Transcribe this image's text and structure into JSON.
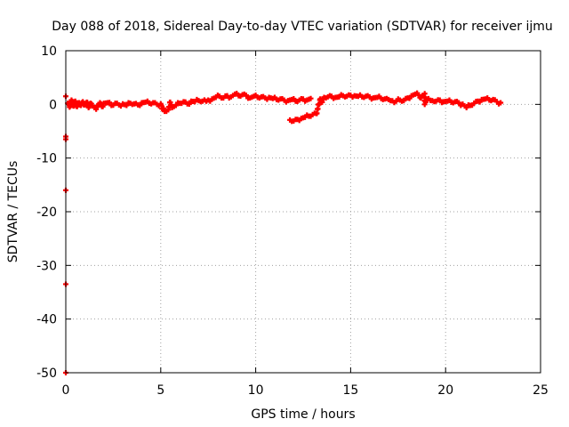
{
  "chart_data": {
    "type": "scatter",
    "title": "Day 088 of 2018, Sidereal Day-to-day VTEC variation (SDTVAR) for receiver ijmu",
    "xlabel": "GPS time / hours",
    "ylabel": "SDTVAR / TECUs",
    "xlim": [
      0,
      25
    ],
    "ylim": [
      -50,
      10
    ],
    "xticks": [
      0,
      5,
      10,
      15,
      20,
      25
    ],
    "yticks": [
      -50,
      -40,
      -30,
      -20,
      -10,
      0,
      10
    ],
    "grid": true,
    "series": [
      {
        "color": "#ff0000",
        "marker": "plus",
        "points": [
          [
            0.0,
            1.5
          ],
          [
            0.0,
            -6.0
          ],
          [
            0.0,
            -6.5
          ],
          [
            0.0,
            -16.0
          ],
          [
            0.0,
            -33.5
          ],
          [
            0.0,
            -50.0
          ],
          [
            0.1,
            0.2
          ],
          [
            0.2,
            -0.5
          ],
          [
            0.3,
            0.8
          ],
          [
            0.4,
            -0.3
          ],
          [
            0.5,
            0.6
          ],
          [
            0.6,
            -0.4
          ],
          [
            0.7,
            0.3
          ],
          [
            0.8,
            -0.2
          ],
          [
            0.9,
            0.5
          ],
          [
            1.0,
            -0.1
          ],
          [
            1.1,
            0.4
          ],
          [
            1.2,
            -0.6
          ],
          [
            1.3,
            0.2
          ],
          [
            1.4,
            -0.3
          ],
          [
            1.5,
            -0.6
          ],
          [
            1.6,
            -0.9
          ],
          [
            1.7,
            -0.2
          ],
          [
            1.8,
            0.3
          ],
          [
            1.9,
            -0.4
          ],
          [
            2.0,
            0.2
          ],
          [
            2.2,
            0.3
          ],
          [
            2.4,
            -0.2
          ],
          [
            2.6,
            0.2
          ],
          [
            2.8,
            -0.1
          ],
          [
            3.0,
            0.1
          ],
          [
            3.2,
            -0.2
          ],
          [
            3.4,
            0.2
          ],
          [
            3.6,
            0.1
          ],
          [
            3.8,
            -0.1
          ],
          [
            4.0,
            0.3
          ],
          [
            4.2,
            0.4
          ],
          [
            4.4,
            0.2
          ],
          [
            4.6,
            0.3
          ],
          [
            4.8,
            0.0
          ],
          [
            5.0,
            0.1
          ],
          [
            5.1,
            -0.8
          ],
          [
            5.2,
            -1.3
          ],
          [
            5.4,
            -1.0
          ],
          [
            5.5,
            0.4
          ],
          [
            5.6,
            -0.6
          ],
          [
            5.8,
            -0.2
          ],
          [
            6.0,
            0.2
          ],
          [
            6.2,
            0.5
          ],
          [
            6.4,
            0.1
          ],
          [
            6.6,
            0.6
          ],
          [
            6.8,
            0.5
          ],
          [
            7.0,
            0.7
          ],
          [
            7.2,
            0.6
          ],
          [
            7.5,
            0.8
          ],
          [
            7.7,
            1.0
          ],
          [
            7.9,
            1.3
          ],
          [
            8.1,
            1.5
          ],
          [
            8.3,
            1.2
          ],
          [
            8.5,
            1.6
          ],
          [
            8.7,
            1.4
          ],
          [
            8.9,
            1.9
          ],
          [
            9.1,
            1.6
          ],
          [
            9.3,
            1.8
          ],
          [
            9.5,
            1.7
          ],
          [
            9.7,
            1.2
          ],
          [
            9.9,
            1.5
          ],
          [
            10.1,
            1.3
          ],
          [
            10.3,
            1.4
          ],
          [
            10.5,
            1.2
          ],
          [
            10.7,
            1.3
          ],
          [
            10.9,
            1.1
          ],
          [
            11.1,
            0.9
          ],
          [
            11.3,
            1.0
          ],
          [
            11.5,
            0.8
          ],
          [
            11.7,
            0.7
          ],
          [
            11.9,
            0.9
          ],
          [
            12.1,
            0.6
          ],
          [
            12.3,
            0.8
          ],
          [
            12.5,
            1.0
          ],
          [
            12.7,
            0.8
          ],
          [
            12.9,
            1.1
          ],
          [
            11.8,
            -2.9
          ],
          [
            12.0,
            -3.1
          ],
          [
            12.2,
            -2.8
          ],
          [
            12.4,
            -2.6
          ],
          [
            12.6,
            -2.4
          ],
          [
            12.8,
            -2.2
          ],
          [
            13.0,
            -1.9
          ],
          [
            13.2,
            -1.7
          ],
          [
            13.4,
            1.0
          ],
          [
            13.5,
            0.4
          ],
          [
            13.6,
            1.3
          ],
          [
            13.8,
            1.4
          ],
          [
            14.0,
            1.5
          ],
          [
            14.2,
            1.3
          ],
          [
            14.4,
            1.4
          ],
          [
            14.6,
            1.6
          ],
          [
            14.8,
            1.5
          ],
          [
            15.0,
            1.7
          ],
          [
            15.2,
            1.6
          ],
          [
            15.4,
            1.5
          ],
          [
            15.6,
            1.4
          ],
          [
            15.8,
            1.5
          ],
          [
            16.0,
            1.4
          ],
          [
            16.2,
            1.2
          ],
          [
            16.4,
            1.3
          ],
          [
            16.6,
            1.1
          ],
          [
            16.8,
            1.0
          ],
          [
            17.0,
            0.9
          ],
          [
            17.1,
            0.7
          ],
          [
            17.4,
            0.6
          ],
          [
            17.6,
            0.8
          ],
          [
            17.8,
            0.7
          ],
          [
            18.0,
            1.2
          ],
          [
            18.2,
            1.6
          ],
          [
            18.4,
            1.9
          ],
          [
            18.6,
            1.7
          ],
          [
            18.7,
            1.2
          ],
          [
            18.9,
            2.0
          ],
          [
            18.9,
            0.0
          ],
          [
            19.0,
            0.8
          ],
          [
            19.3,
            0.7
          ],
          [
            19.5,
            0.6
          ],
          [
            19.7,
            0.8
          ],
          [
            19.9,
            0.5
          ],
          [
            20.1,
            0.6
          ],
          [
            20.3,
            0.4
          ],
          [
            20.5,
            0.5
          ],
          [
            20.7,
            0.3
          ],
          [
            21.0,
            -0.3
          ],
          [
            21.1,
            -0.6
          ],
          [
            21.3,
            -0.2
          ],
          [
            21.5,
            0.2
          ],
          [
            21.7,
            0.6
          ],
          [
            21.9,
            0.9
          ],
          [
            22.1,
            1.0
          ],
          [
            22.3,
            0.8
          ],
          [
            22.5,
            0.9
          ],
          [
            22.7,
            0.5
          ],
          [
            22.9,
            0.3
          ]
        ]
      }
    ]
  }
}
